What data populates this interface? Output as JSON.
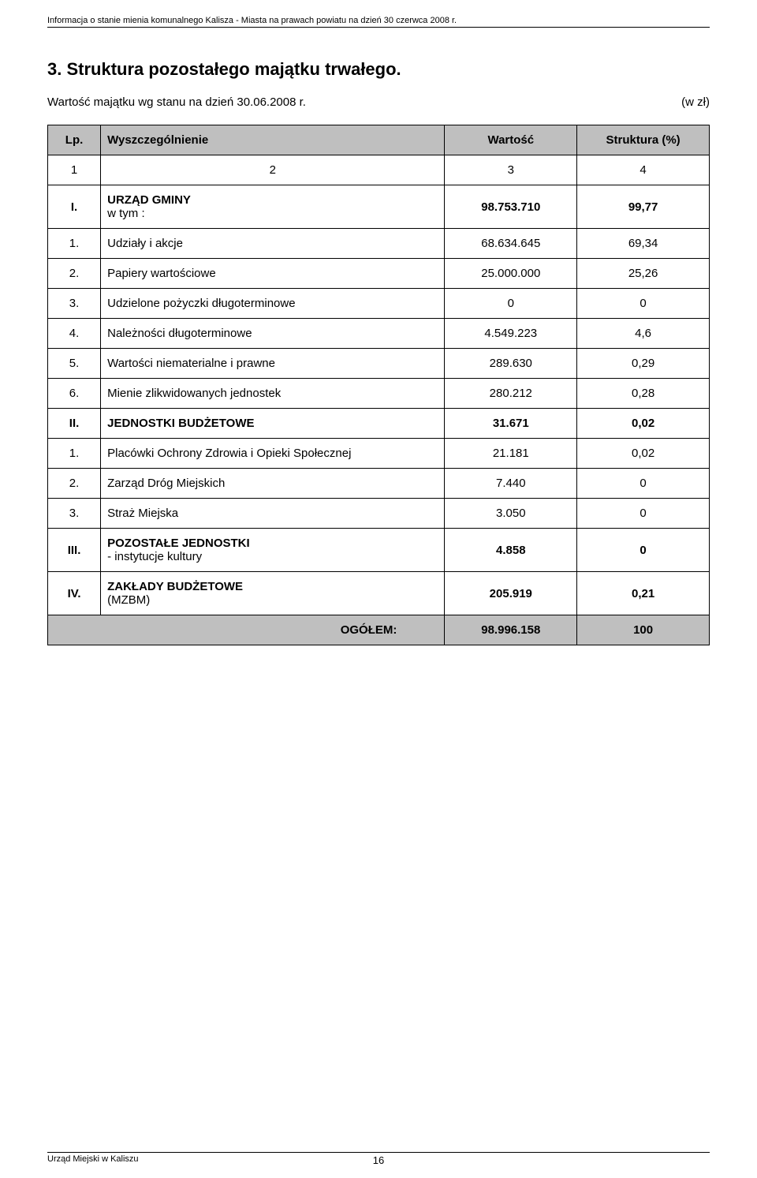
{
  "document": {
    "header_small": "Informacja o stanie mienia komunalnego Kalisza - Miasta na prawach powiatu na dzień 30 czerwca 2008 r.",
    "title": "3. Struktura pozostałego majątku trwałego.",
    "subtitle_left": "Wartość majątku wg stanu na dzień 30.06.2008 r.",
    "subtitle_right": "(w zł)",
    "footer_left": "Urząd Miejski w Kaliszu",
    "page_number": "16"
  },
  "table": {
    "header": {
      "lp": "Lp.",
      "name": "Wyszczególnienie",
      "value": "Wartość",
      "pct": "Struktura (%)"
    },
    "numrow": {
      "c1": "1",
      "c2": "2",
      "c3": "3",
      "c4": "4"
    },
    "rows": [
      {
        "lp": "I.",
        "name": "URZĄD GMINY\nw tym :",
        "value": "98.753.710",
        "pct": "99,77",
        "bold": true
      },
      {
        "lp": "1.",
        "name": "Udziały i akcje",
        "value": "68.634.645",
        "pct": "69,34",
        "bold": false
      },
      {
        "lp": "2.",
        "name": "Papiery wartościowe",
        "value": "25.000.000",
        "pct": "25,26",
        "bold": false
      },
      {
        "lp": "3.",
        "name": "Udzielone pożyczki długoterminowe",
        "value": "0",
        "pct": "0",
        "bold": false
      },
      {
        "lp": "4.",
        "name": "Należności długoterminowe",
        "value": "4.549.223",
        "pct": "4,6",
        "bold": false
      },
      {
        "lp": "5.",
        "name": "Wartości niematerialne i prawne",
        "value": "289.630",
        "pct": "0,29",
        "bold": false
      },
      {
        "lp": "6.",
        "name": "Mienie zlikwidowanych jednostek",
        "value": "280.212",
        "pct": "0,28",
        "bold": false
      },
      {
        "lp": "II.",
        "name": "JEDNOSTKI BUDŻETOWE",
        "value": "31.671",
        "pct": "0,02",
        "bold": true
      },
      {
        "lp": "1.",
        "name": "Placówki Ochrony Zdrowia i Opieki Społecznej",
        "value": "21.181",
        "pct": "0,02",
        "bold": false
      },
      {
        "lp": "2.",
        "name": "Zarząd Dróg Miejskich",
        "value": "7.440",
        "pct": "0",
        "bold": false
      },
      {
        "lp": "3.",
        "name": "Straż Miejska",
        "value": "3.050",
        "pct": "0",
        "bold": false
      },
      {
        "lp": "III.",
        "name": "POZOSTAŁE JEDNOSTKI\n- instytucje kultury",
        "value": "4.858",
        "pct": "0",
        "bold": true
      },
      {
        "lp": "IV.",
        "name": "ZAKŁADY BUDŻETOWE\n(MZBM)",
        "value": "205.919",
        "pct": "0,21",
        "bold": true
      }
    ],
    "total": {
      "label": "OGÓŁEM:",
      "value": "98.996.158",
      "pct": "100"
    }
  },
  "colors": {
    "header_bg": "#bfbfbf",
    "border": "#000000",
    "text": "#000000",
    "background": "#ffffff"
  },
  "fonts": {
    "body_pt": 15,
    "small_pt": 11,
    "title_pt": 22
  }
}
